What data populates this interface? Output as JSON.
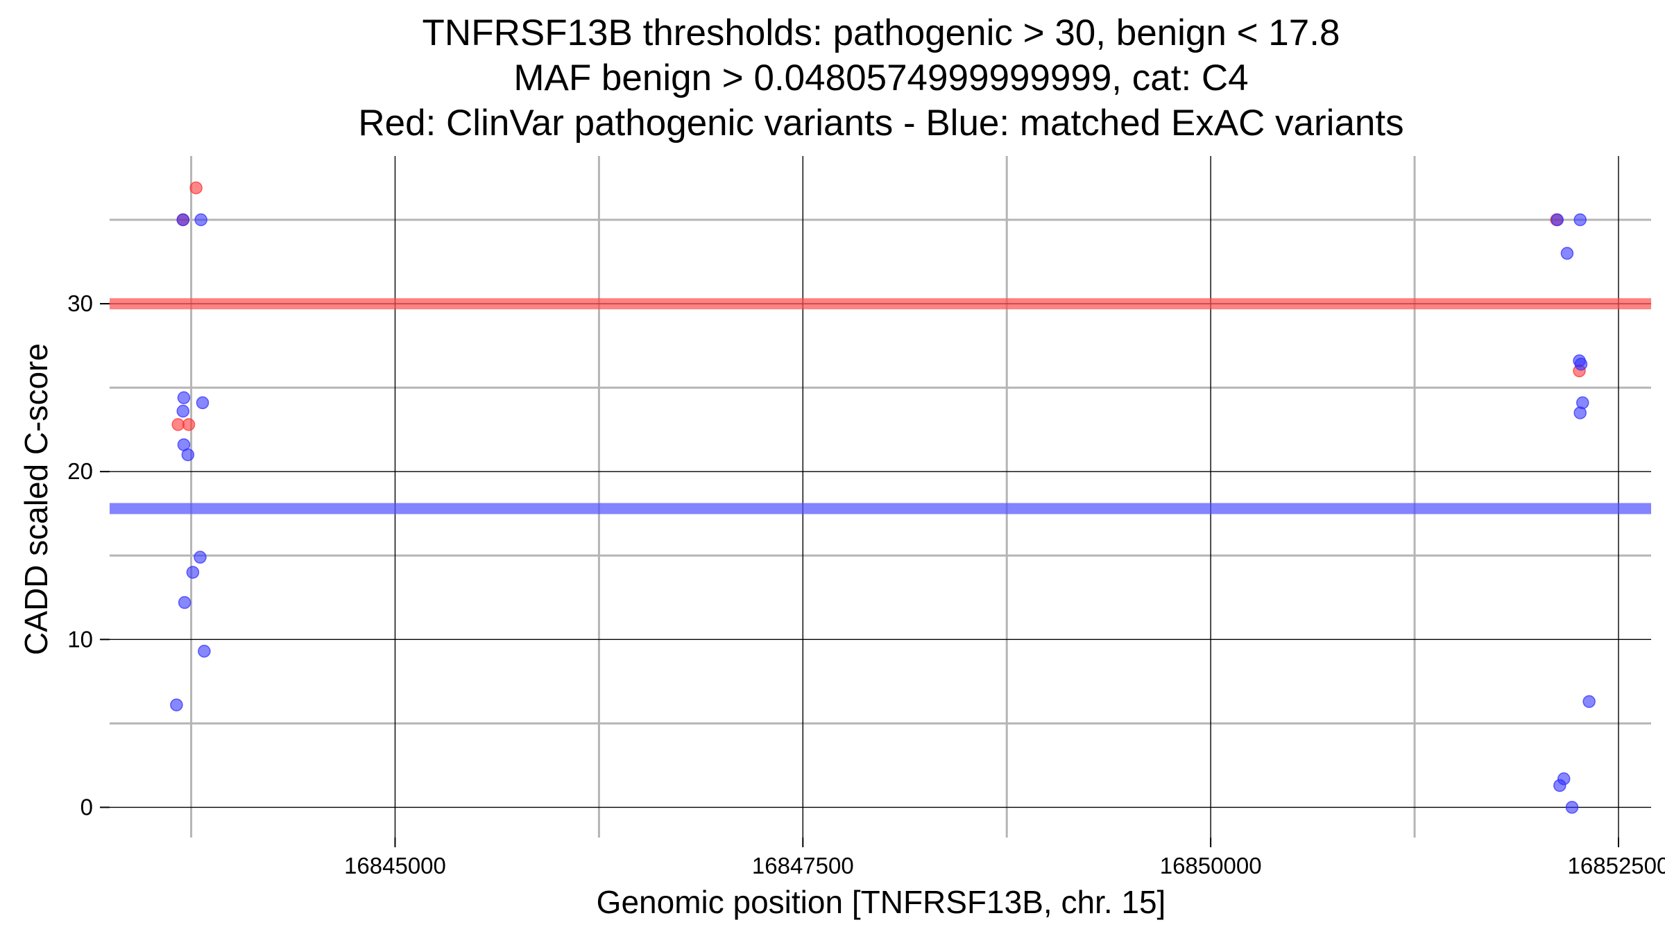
{
  "chart_data": {
    "type": "scatter",
    "title_lines": [
      "TNFRSF13B thresholds: pathogenic > 30, benign < 17.8",
      "MAF benign > 0.0480574999999999, cat: C4",
      "Red: ClinVar pathogenic variants - Blue: matched ExAC variants"
    ],
    "xlabel": "Genomic position [TNFRSF13B, chr. 15]",
    "ylabel": "CADD scaled C-score",
    "xlim": [
      16843250,
      16852700
    ],
    "ylim": [
      -1.8,
      38.8
    ],
    "x_major_ticks": [
      16845000,
      16847500,
      16850000,
      16852500
    ],
    "x_tick_labels": [
      "16845000",
      "16847500",
      "16850000",
      "16852500"
    ],
    "x_minor_ticks": [
      16843750,
      16846250,
      16848750,
      16851250
    ],
    "y_major_ticks": [
      0,
      10,
      20,
      30
    ],
    "y_tick_labels": [
      "0",
      "10",
      "20",
      "30"
    ],
    "y_minor_ticks": [
      5,
      15,
      25,
      35
    ],
    "grid": true,
    "thresholds": [
      {
        "type": "pathogenic",
        "value": 30,
        "color": "#ff4d4d"
      },
      {
        "type": "benign",
        "value": 17.8,
        "color": "#5050ff"
      }
    ],
    "series": [
      {
        "color": "#ff3030",
        "points": [
          {
            "x": 16843700,
            "y": 35
          },
          {
            "x": 16843780,
            "y": 36.9
          },
          {
            "x": 16843670,
            "y": 22.8
          },
          {
            "x": 16843735,
            "y": 22.8
          },
          {
            "x": 16852120,
            "y": 35
          },
          {
            "x": 16852260,
            "y": 26
          }
        ]
      },
      {
        "color": "#3030ff",
        "points": [
          {
            "x": 16843700,
            "y": 35
          },
          {
            "x": 16843810,
            "y": 35
          },
          {
            "x": 16843705,
            "y": 24.4
          },
          {
            "x": 16843700,
            "y": 23.6
          },
          {
            "x": 16843820,
            "y": 24.1
          },
          {
            "x": 16843705,
            "y": 21.6
          },
          {
            "x": 16843730,
            "y": 21
          },
          {
            "x": 16843805,
            "y": 14.9
          },
          {
            "x": 16843760,
            "y": 14
          },
          {
            "x": 16843710,
            "y": 12.2
          },
          {
            "x": 16843830,
            "y": 9.3
          },
          {
            "x": 16843660,
            "y": 6.1
          },
          {
            "x": 16852125,
            "y": 35
          },
          {
            "x": 16852265,
            "y": 35
          },
          {
            "x": 16852185,
            "y": 33
          },
          {
            "x": 16852260,
            "y": 26.6
          },
          {
            "x": 16852270,
            "y": 26.4
          },
          {
            "x": 16852280,
            "y": 24.1
          },
          {
            "x": 16852265,
            "y": 23.5
          },
          {
            "x": 16852320,
            "y": 6.3
          },
          {
            "x": 16852165,
            "y": 1.7
          },
          {
            "x": 16852140,
            "y": 1.3
          },
          {
            "x": 16852215,
            "y": 0
          }
        ]
      }
    ]
  }
}
